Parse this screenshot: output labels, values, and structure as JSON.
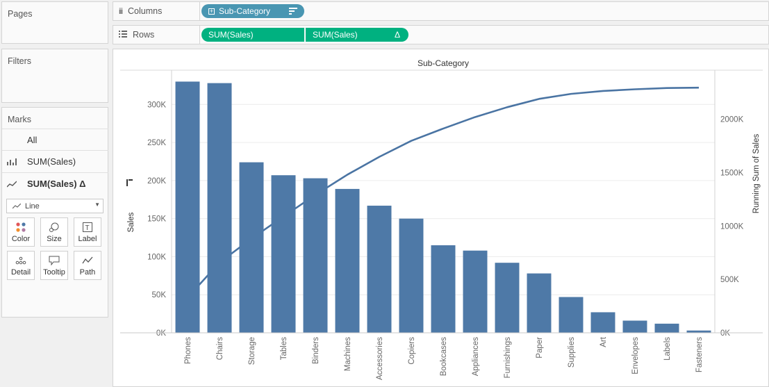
{
  "panels": {
    "pages": "Pages",
    "filters": "Filters",
    "marks": "Marks"
  },
  "shelves": {
    "columns_label": "Columns",
    "rows_label": "Rows",
    "columns_pill": "Sub-Category",
    "rows_pill_1": "SUM(Sales)",
    "rows_pill_2": "SUM(Sales)",
    "rows_pill_2_suffix": "Δ"
  },
  "marks": {
    "all": "All",
    "layer1": "SUM(Sales)",
    "layer2": "SUM(Sales) Δ",
    "mark_type": "Line",
    "buttons": [
      "Color",
      "Size",
      "Label",
      "Detail",
      "Tooltip",
      "Path"
    ]
  },
  "colors": {
    "bar": "#4e79a7",
    "line": "#4a74a3",
    "dim_pill": "#4996b2",
    "measure_pill": "#00b180"
  },
  "chart_data": {
    "type": "bar",
    "title": "Sub-Category",
    "xlabel": "",
    "ylabel": "Sales",
    "y2label": "Running Sum of Sales",
    "categories": [
      "Phones",
      "Chairs",
      "Storage",
      "Tables",
      "Binders",
      "Machines",
      "Accessories",
      "Copiers",
      "Bookcases",
      "Appliances",
      "Furnishings",
      "Paper",
      "Supplies",
      "Art",
      "Envelopes",
      "Labels",
      "Fasteners"
    ],
    "series": [
      {
        "name": "Sales",
        "type": "bar",
        "axis": "left",
        "values": [
          330000,
          328000,
          224000,
          207000,
          203000,
          189000,
          167000,
          150000,
          115000,
          108000,
          92000,
          78000,
          47000,
          27000,
          16000,
          12000,
          3000
        ]
      },
      {
        "name": "Running Sum of Sales",
        "type": "line",
        "axis": "right",
        "values": [
          330000,
          658000,
          882000,
          1089000,
          1292000,
          1481000,
          1648000,
          1798000,
          1913000,
          2021000,
          2113000,
          2191000,
          2238000,
          2265000,
          2281000,
          2293000,
          2296000
        ]
      }
    ],
    "ylim": [
      0,
      345000
    ],
    "y2lim": [
      0,
      2460000
    ],
    "yticks": [
      "0K",
      "50K",
      "100K",
      "150K",
      "200K",
      "250K",
      "300K"
    ],
    "y2ticks": [
      "0K",
      "500K",
      "1000K",
      "1500K",
      "2000K"
    ],
    "grid": true,
    "legend": "none"
  }
}
